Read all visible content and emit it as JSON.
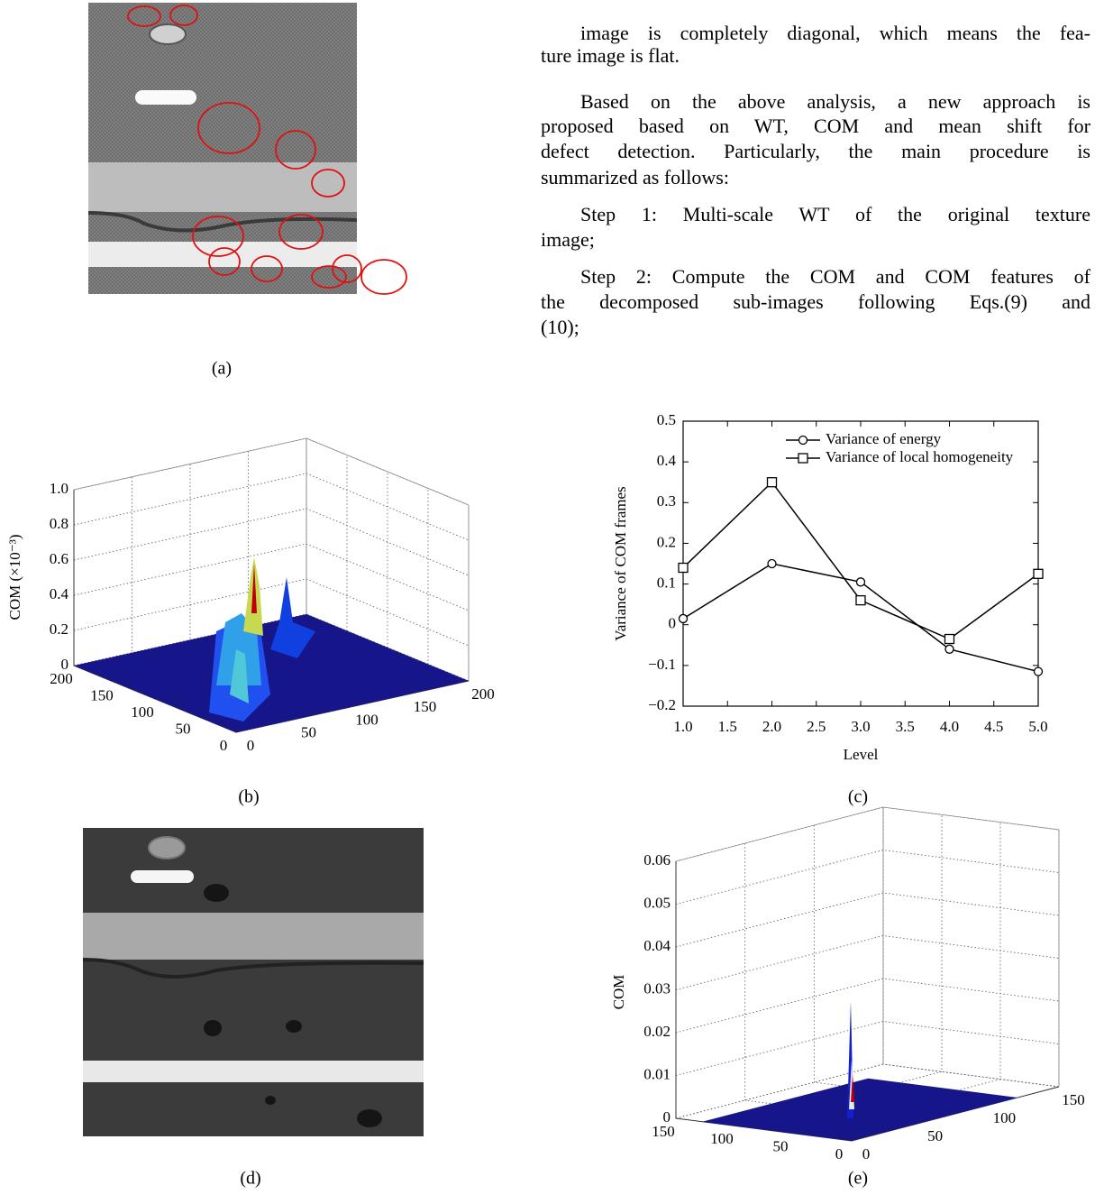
{
  "text": {
    "paragraphs": [
      [
        "image is completely diagonal, which means the fea-",
        "ture image is flat."
      ],
      [
        "Based on the above analysis, a new approach is",
        "proposed based on WT, COM and mean shift for",
        "defect detection. Particularly, the main procedure is",
        "summarized as follows:"
      ],
      [
        "Step 1: Multi-scale WT of the original texture",
        "image;"
      ],
      [
        "Step 2: Compute the COM and COM features of",
        "the decomposed sub-images following Eqs.(9) and",
        "(10);"
      ]
    ]
  },
  "figure_a": {
    "label": "(a)"
  },
  "figure_b": {
    "label": "(b)",
    "zlabel": "COM (×10⁻³)",
    "zlim": [
      0,
      1
    ],
    "zticks": [
      0,
      0.2,
      0.4,
      0.6,
      0.8,
      {
        "value": 1,
        "label": "1.0"
      }
    ],
    "ulim": [
      0,
      200
    ],
    "uticks": [
      0,
      50,
      100,
      150,
      200
    ],
    "vlim": [
      0,
      200
    ],
    "vticks": [
      0,
      50,
      100,
      150,
      200
    ]
  },
  "chart_data": {
    "type": "line",
    "label": "(c)",
    "xlabel": "Level",
    "ylabel": "Variance of COM frames",
    "x": [
      1,
      2,
      3,
      4,
      5
    ],
    "series": [
      {
        "name": "Variance of energy",
        "color": "#000000",
        "marker": "circle",
        "values": [
          0.015,
          0.15,
          0.105,
          -0.06,
          -0.115
        ]
      },
      {
        "name": "Variance of local homogeneity",
        "color": "#000000",
        "marker": "square",
        "values": [
          0.14,
          0.35,
          0.06,
          -0.035,
          0.125
        ]
      }
    ],
    "xlim": [
      1,
      5
    ],
    "xticks": [
      {
        "value": 1,
        "label": "1.0"
      },
      1.5,
      {
        "value": 2,
        "label": "2.0"
      },
      2.5,
      {
        "value": 3,
        "label": "3.0"
      },
      3.5,
      {
        "value": 4,
        "label": "4.0"
      },
      4.5,
      {
        "value": 5,
        "label": "5.0"
      }
    ],
    "ylim": [
      -0.2,
      0.5
    ],
    "yticks": [
      {
        "value": -0.2,
        "label": "−0.2"
      },
      {
        "value": -0.1,
        "label": "−0.1"
      },
      0,
      0.1,
      0.2,
      0.3,
      0.4,
      0.5
    ],
    "legend": "upper right",
    "grid": false
  },
  "figure_d": {
    "label": "(d)"
  },
  "figure_e": {
    "label": "(e)",
    "zlabel": "COM",
    "zlim": [
      0,
      0.06
    ],
    "zticks": [
      0,
      0.01,
      0.02,
      0.03,
      0.04,
      0.05,
      0.06
    ],
    "ulim": [
      0,
      150
    ],
    "uticks": [
      0,
      50,
      100,
      150
    ],
    "vlim": [
      0,
      150
    ],
    "vticks": [
      0,
      50,
      100,
      150
    ]
  }
}
